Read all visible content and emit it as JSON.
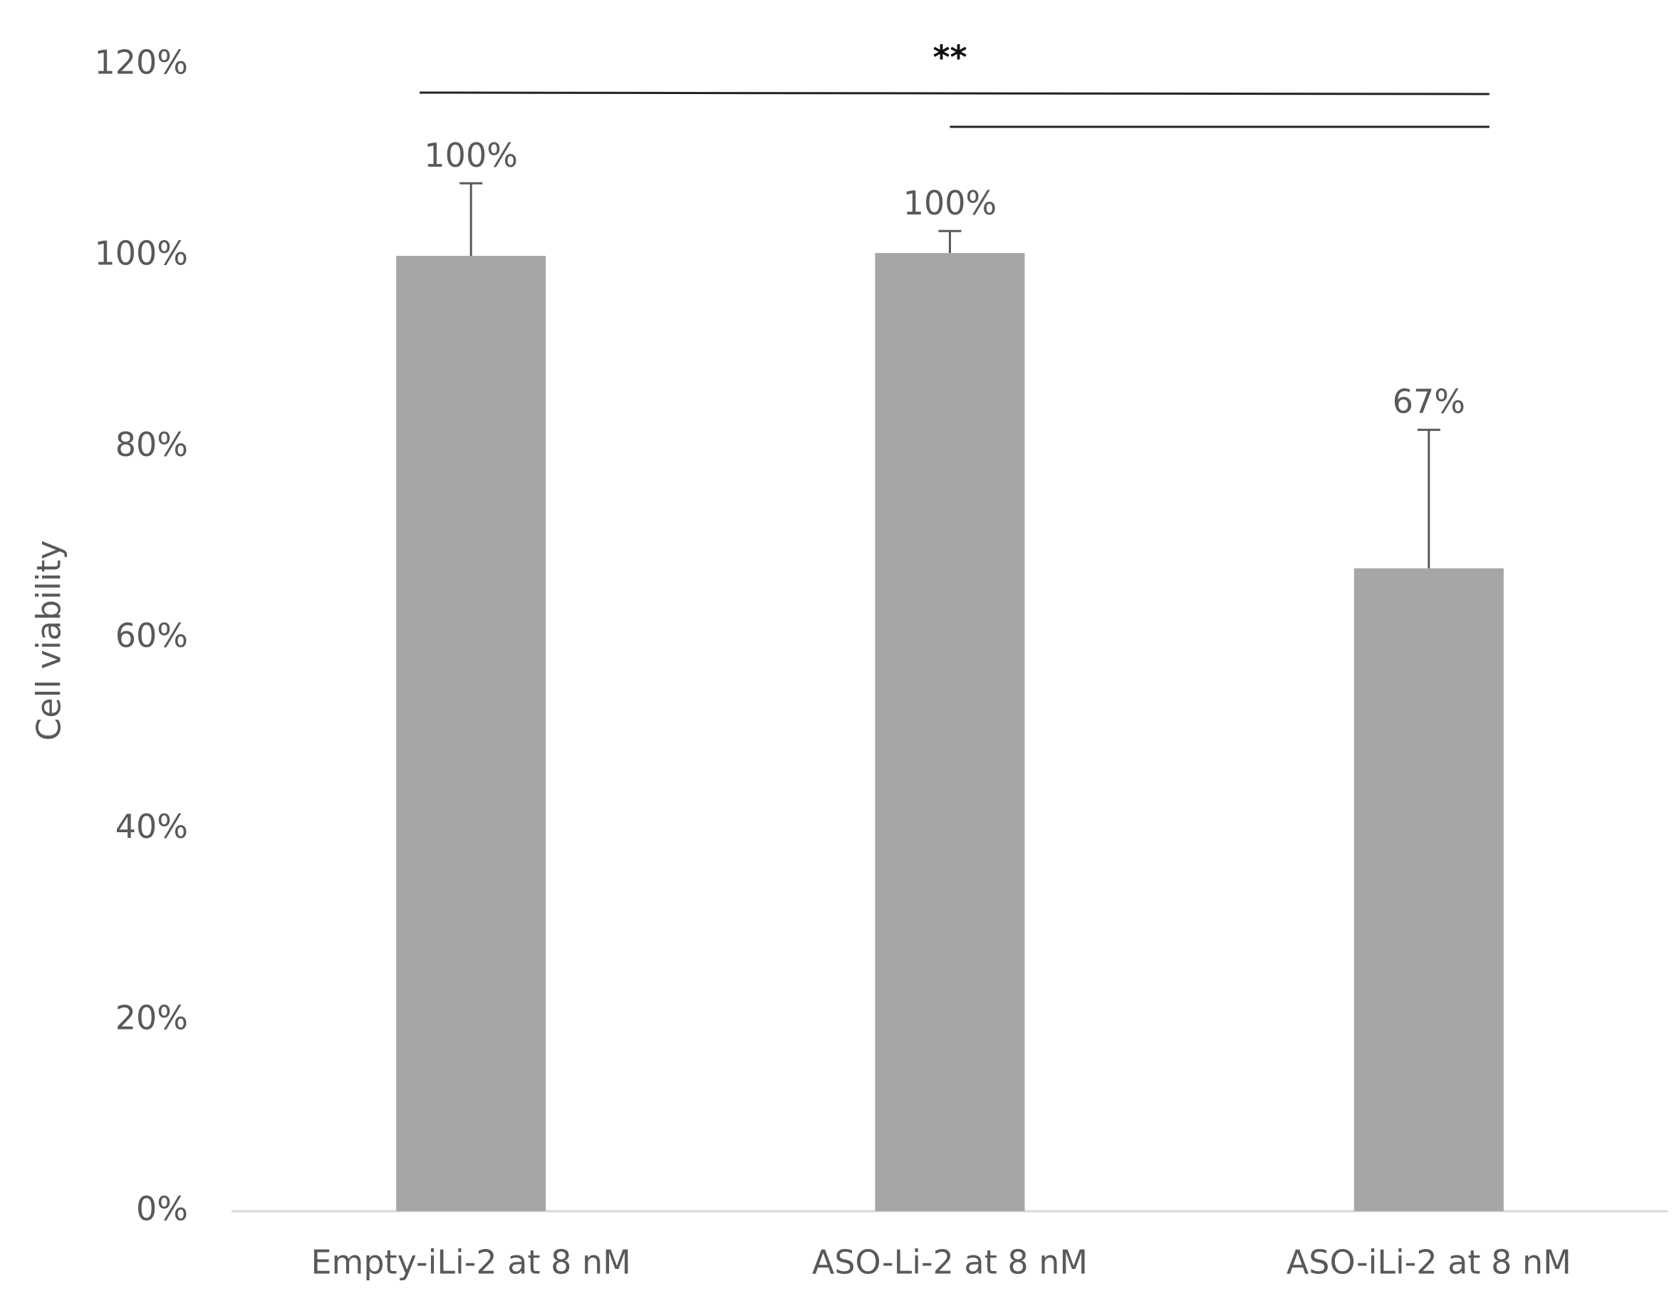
{
  "chart_data": {
    "type": "bar",
    "y_label": "Cell viability",
    "categories": [
      "Empty-iLi-2 at 8 nM",
      "ASO-Li-2 at 8 nM",
      "ASO-iLi-2 at 8 nM"
    ],
    "values": [
      100,
      100.3,
      67.3
    ],
    "value_labels": [
      "100%",
      "100%",
      "67%"
    ],
    "errors": [
      7.6,
      2.3,
      14.5
    ],
    "color": "#a6a6a6",
    "significance": "**",
    "ylim": [
      0,
      120
    ],
    "yticks": [
      {
        "value": 0,
        "label": "0%"
      },
      {
        "value": 20,
        "label": "20%"
      },
      {
        "value": 40,
        "label": "40%"
      },
      {
        "value": 60,
        "label": "60%"
      },
      {
        "value": 80,
        "label": "80%"
      },
      {
        "value": 100,
        "label": "100%"
      },
      {
        "value": 120,
        "label": "120%"
      }
    ],
    "grid": false
  }
}
